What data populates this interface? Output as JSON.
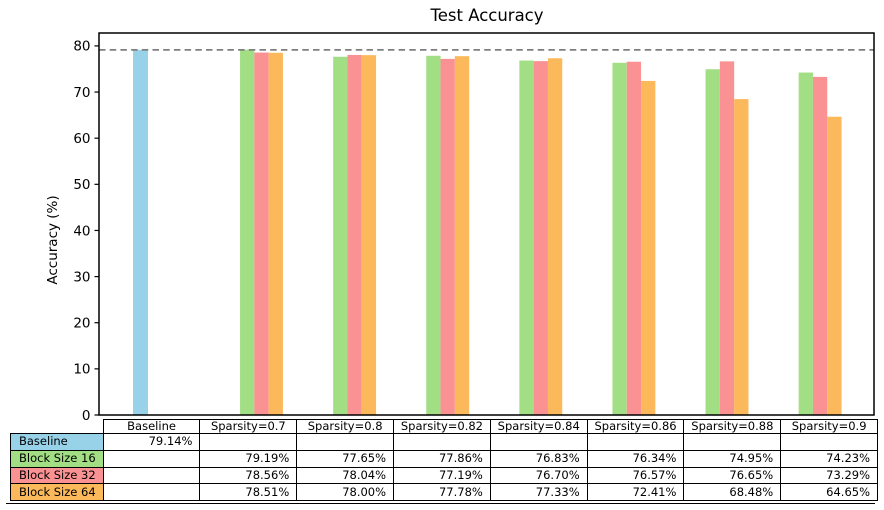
{
  "chart_data": {
    "type": "bar",
    "title": "Test Accuracy",
    "ylabel": "Accuracy (%)",
    "xlabel": "",
    "categories": [
      "Baseline",
      "Sparsity=0.7",
      "Sparsity=0.8",
      "Sparsity=0.82",
      "Sparsity=0.84",
      "Sparsity=0.86",
      "Sparsity=0.88",
      "Sparsity=0.9"
    ],
    "series": [
      {
        "name": "Baseline",
        "color": "#97D2E9",
        "values": [
          79.14,
          null,
          null,
          null,
          null,
          null,
          null,
          null
        ]
      },
      {
        "name": "Block Size 16",
        "color": "#A2DE84",
        "values": [
          null,
          79.19,
          77.65,
          77.86,
          76.83,
          76.34,
          74.95,
          74.23
        ]
      },
      {
        "name": "Block Size 32",
        "color": "#FA9193",
        "values": [
          null,
          78.56,
          78.04,
          77.19,
          76.7,
          76.57,
          76.65,
          73.29
        ]
      },
      {
        "name": "Block Size 64",
        "color": "#FCB95B",
        "values": [
          null,
          78.51,
          78.0,
          77.78,
          77.33,
          72.41,
          68.48,
          64.65
        ]
      }
    ],
    "reference_line": {
      "value": 79.14,
      "style": "dashed",
      "color": "#7f7f7f"
    },
    "yticks": [
      0,
      10,
      20,
      30,
      40,
      50,
      60,
      70,
      80
    ],
    "ylim": [
      0,
      82.8
    ],
    "grid": false,
    "legend_position": "table-below"
  },
  "table": {
    "columns": [
      "Baseline",
      "Sparsity=0.7",
      "Sparsity=0.8",
      "Sparsity=0.82",
      "Sparsity=0.84",
      "Sparsity=0.86",
      "Sparsity=0.88",
      "Sparsity=0.9"
    ],
    "rows": [
      {
        "label": "Baseline",
        "color": "#97D2E9",
        "values": [
          "79.14%",
          "",
          "",
          "",
          "",
          "",
          "",
          ""
        ]
      },
      {
        "label": "Block Size 16",
        "color": "#A2DE84",
        "values": [
          "",
          "79.19%",
          "77.65%",
          "77.86%",
          "76.83%",
          "76.34%",
          "74.95%",
          "74.23%"
        ]
      },
      {
        "label": "Block Size 32",
        "color": "#FA9193",
        "values": [
          "",
          "78.56%",
          "78.04%",
          "77.19%",
          "76.70%",
          "76.57%",
          "76.65%",
          "73.29%"
        ]
      },
      {
        "label": "Block Size 64",
        "color": "#FCB95B",
        "values": [
          "",
          "78.51%",
          "78.00%",
          "77.78%",
          "77.33%",
          "72.41%",
          "68.48%",
          "64.65%"
        ]
      }
    ]
  }
}
